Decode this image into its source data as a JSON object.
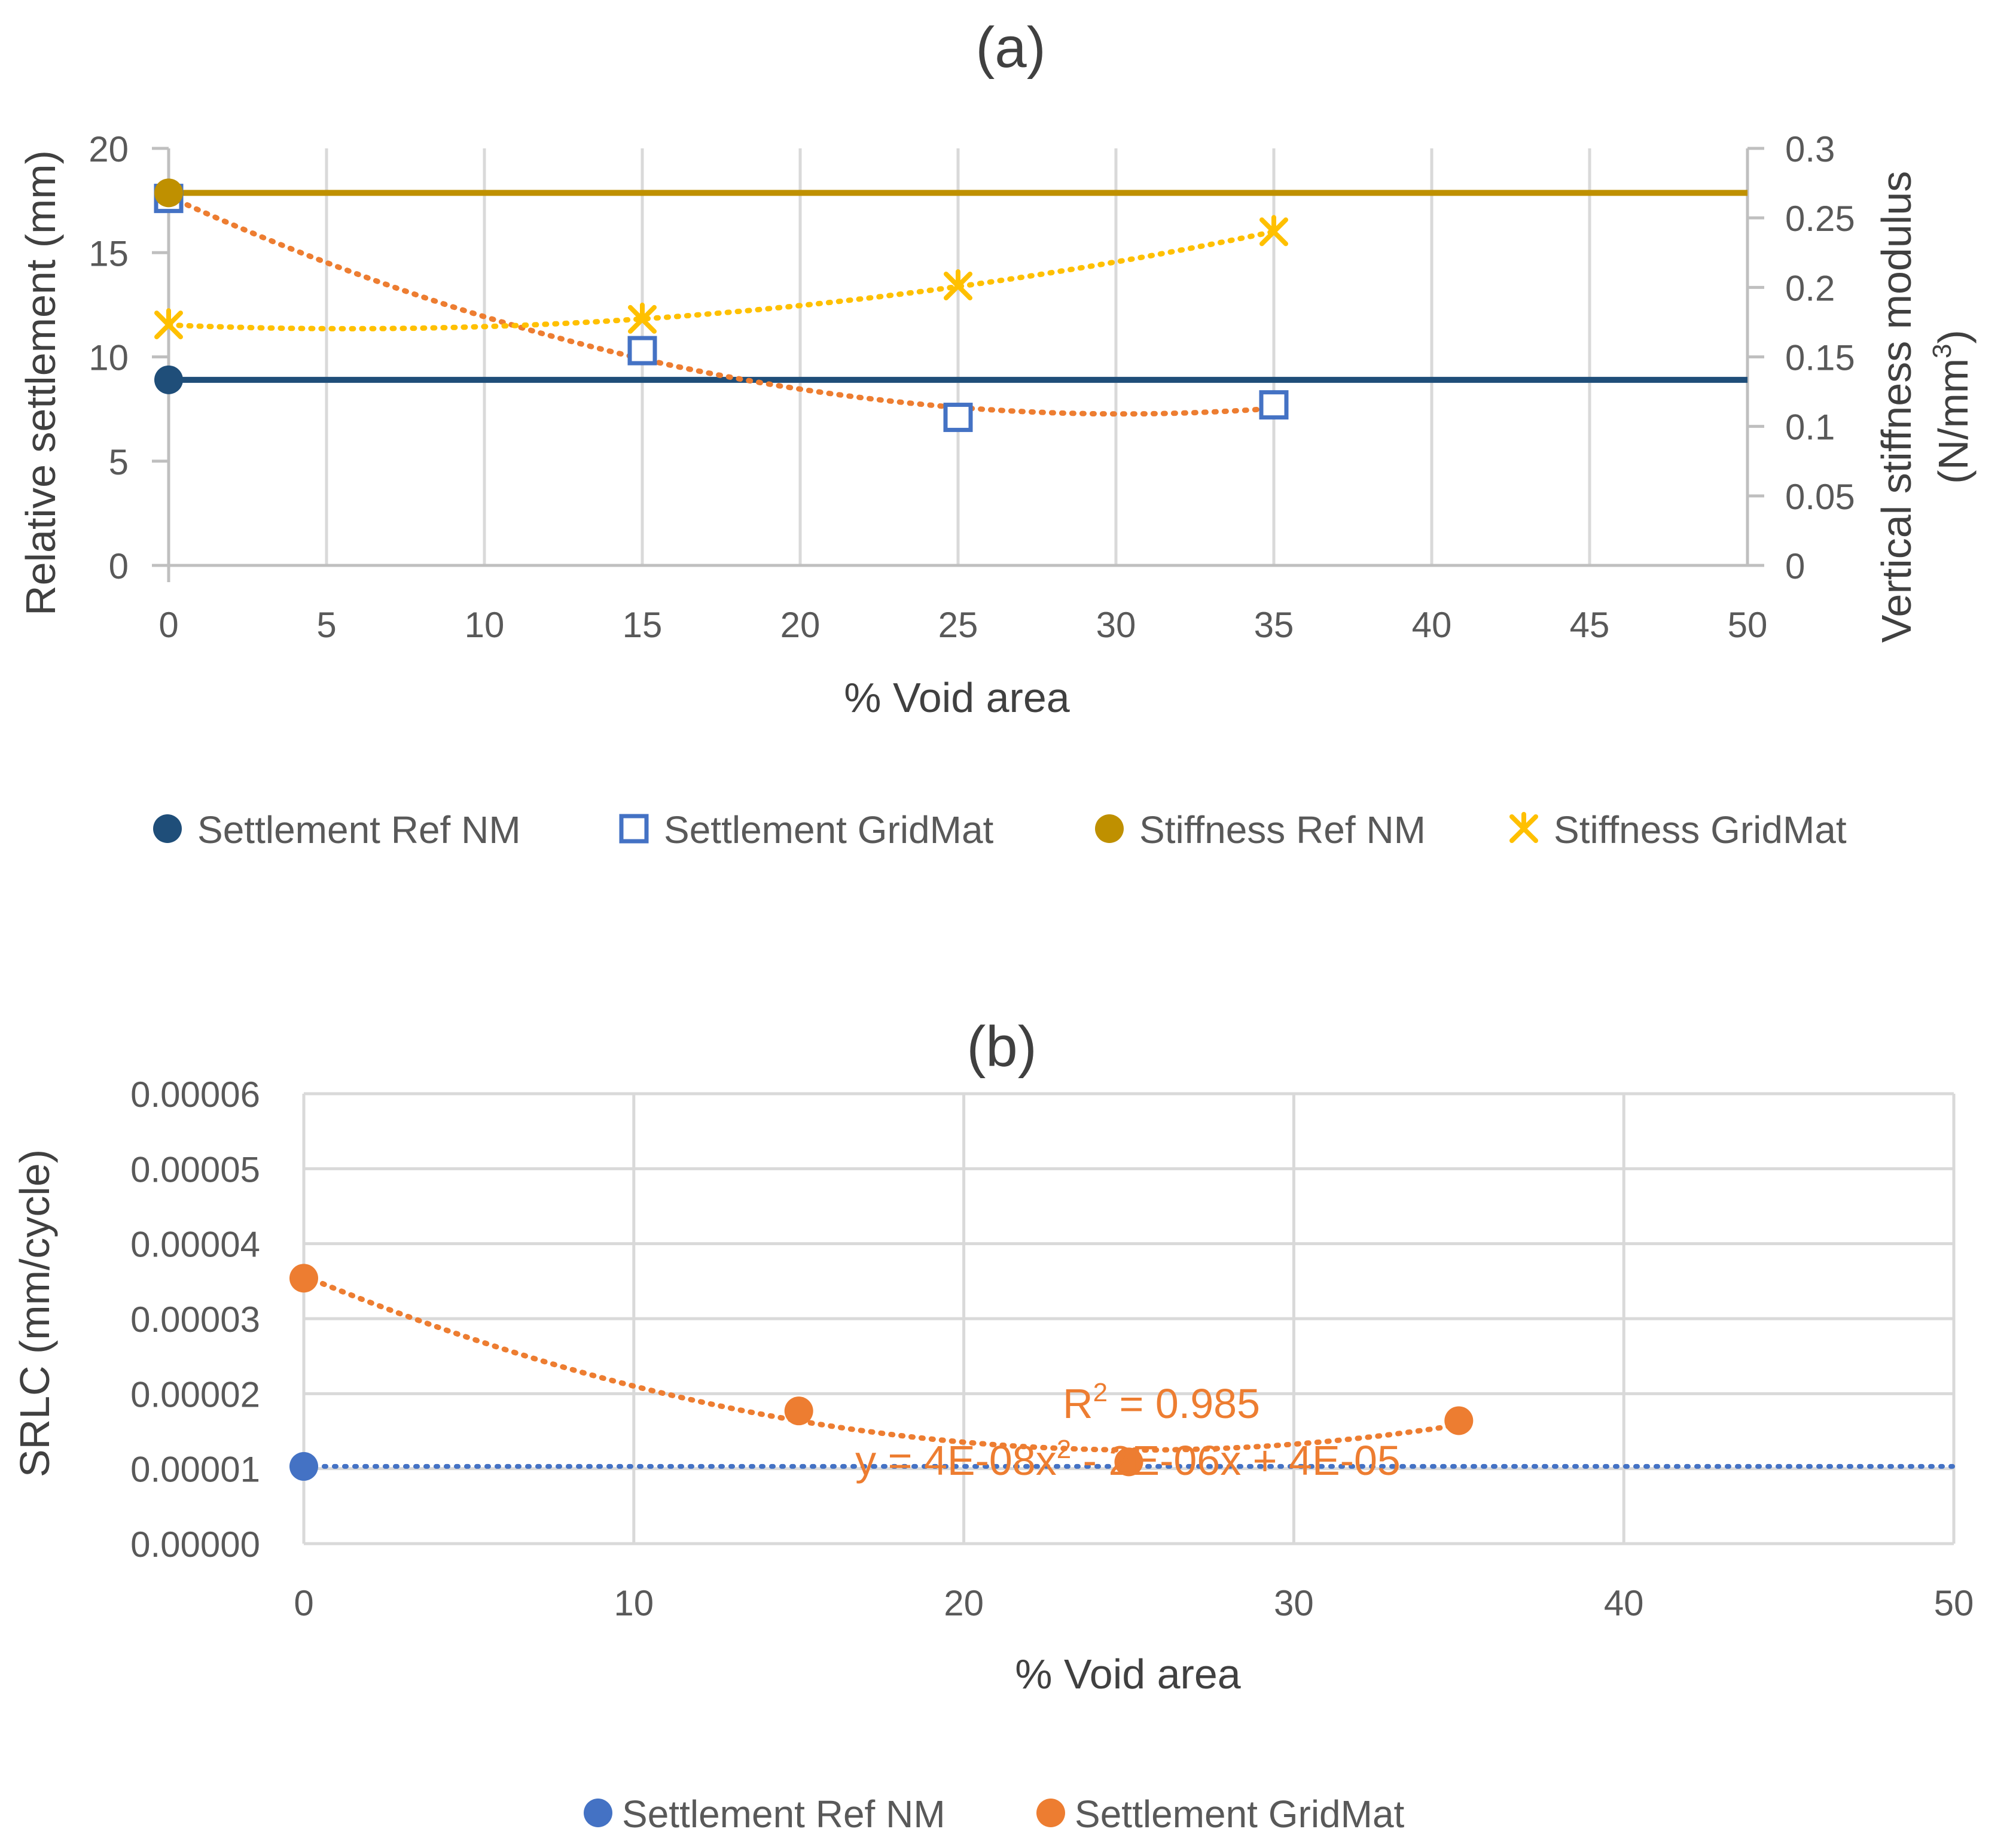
{
  "chart_data": [
    {
      "panel": "a",
      "type": "scatter",
      "title": "(a)",
      "xlabel": "% Void area",
      "ylabel": "Relative settlement (mm)",
      "y2label_line1": "Vertical stiffness modulus",
      "y2label_line2_base": "(N/mm",
      "y2label_line2_sup": "3",
      "y2label_line2_end": ")",
      "xlim": [
        0,
        50
      ],
      "ylim": [
        0,
        20
      ],
      "y2lim": [
        0,
        0.3
      ],
      "xticks": [
        "0",
        "5",
        "10",
        "15",
        "20",
        "25",
        "30",
        "35",
        "40",
        "45",
        "50"
      ],
      "yticks": [
        "0",
        "5",
        "10",
        "15",
        "20"
      ],
      "y2ticks": [
        "0",
        "0.05",
        "0.1",
        "0.15",
        "0.2",
        "0.25",
        "0.3"
      ],
      "grid": true,
      "legend_position": "bottom",
      "series": [
        {
          "name": "Settlement Ref NM",
          "axis": "left",
          "marker": "filled-circle",
          "color": "#1f4e79",
          "x": [
            0
          ],
          "y": [
            8.9
          ],
          "reference_line": true
        },
        {
          "name": "Settlement GridMat",
          "axis": "left",
          "marker": "open-square",
          "color": "#4472c4",
          "x": [
            0,
            15,
            25,
            35
          ],
          "y": [
            17.6,
            10.3,
            7.1,
            7.7
          ],
          "trendline": "polynomial-2",
          "trend_color": "#ed7d31"
        },
        {
          "name": "Stiffness Ref NM",
          "axis": "right",
          "marker": "filled-circle",
          "color": "#bf9000",
          "x": [
            0
          ],
          "y": [
            0.268
          ],
          "reference_line": true
        },
        {
          "name": "Stiffness GridMat",
          "axis": "right",
          "marker": "star-x",
          "color": "#ffc000",
          "x": [
            0,
            15,
            25,
            35
          ],
          "y": [
            0.173,
            0.177,
            0.201,
            0.24
          ],
          "trendline": "polynomial-2",
          "trend_color": "#ffc000"
        }
      ]
    },
    {
      "panel": "b",
      "type": "scatter",
      "title": "(b)",
      "xlabel": "% Void area",
      "ylabel": "SRLC (mm/cycle)",
      "xlim": [
        0,
        50
      ],
      "ylim": [
        0,
        6e-05
      ],
      "xticks": [
        "0",
        "10",
        "20",
        "30",
        "40",
        "50"
      ],
      "yticks": [
        "0.00000",
        "0.00001",
        "0.00002",
        "0.00003",
        "0.00004",
        "0.00005",
        "0.00006"
      ],
      "grid": true,
      "legend_position": "bottom",
      "annotation": {
        "equation_base": "y = 4E-08x",
        "equation_sup": "2",
        "equation_end": " - 2E-06x + 4E-05",
        "r2_base": "R",
        "r2_sup": "2",
        "r2_end": " = 0.985",
        "color": "#ed7d31"
      },
      "series": [
        {
          "name": "Settlement Ref NM",
          "marker": "filled-circle",
          "color": "#4472c4",
          "x": [
            0
          ],
          "y": [
            1.03e-05
          ],
          "reference_line": true,
          "line_style": "dotted"
        },
        {
          "name": "Settlement GridMat",
          "marker": "filled-circle",
          "color": "#ed7d31",
          "x": [
            0,
            15,
            25,
            35
          ],
          "y": [
            3.54e-05,
            1.77e-05,
            1.09e-05,
            1.64e-05
          ],
          "trendline": "polynomial-2",
          "trend_color": "#ed7d31"
        }
      ]
    }
  ]
}
